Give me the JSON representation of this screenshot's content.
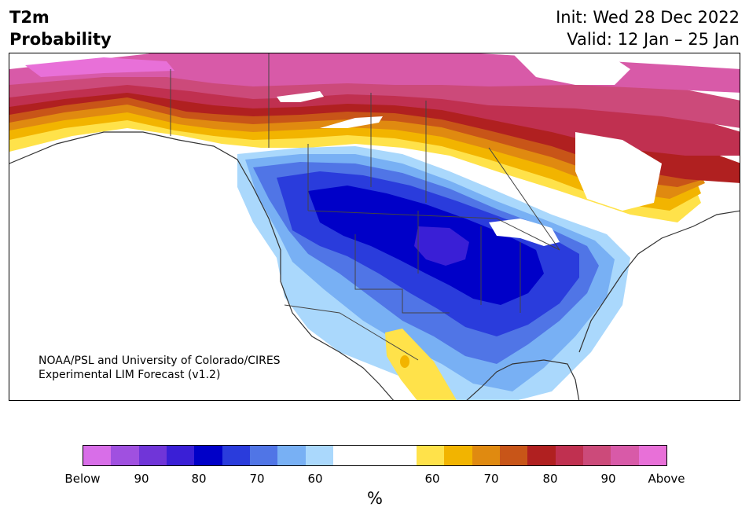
{
  "header": {
    "title_line1": "T2m",
    "title_line2": "Probability",
    "init": "Init: Wed 28 Dec 2022",
    "valid": "Valid: 12 Jan – 25 Jan"
  },
  "map": {
    "region": "North America",
    "credit_line1": "NOAA/PSL and University of Colorado/CIRES",
    "credit_line2": "Experimental LIM Forecast (v1.2)"
  },
  "colorbar": {
    "unit": "%",
    "below_colors": [
      "#d86ee8",
      "#a050e0",
      "#7035d8",
      "#3a1fd6",
      "#0000c8",
      "#2a3cdc",
      "#5075e6",
      "#78b0f4",
      "#aad8fc"
    ],
    "neutral_color": "#ffffff",
    "above_colors": [
      "#ffe24a",
      "#f2b400",
      "#e08a10",
      "#c85518",
      "#b02020",
      "#c03050",
      "#cc4a7a",
      "#d85aa8",
      "#e870d8"
    ],
    "tick_labels": {
      "below": "Below",
      "b90": "90",
      "b80": "80",
      "b70": "70",
      "b60": "60",
      "a60": "60",
      "a70": "70",
      "a80": "80",
      "a90": "90",
      "above": "Above"
    }
  }
}
